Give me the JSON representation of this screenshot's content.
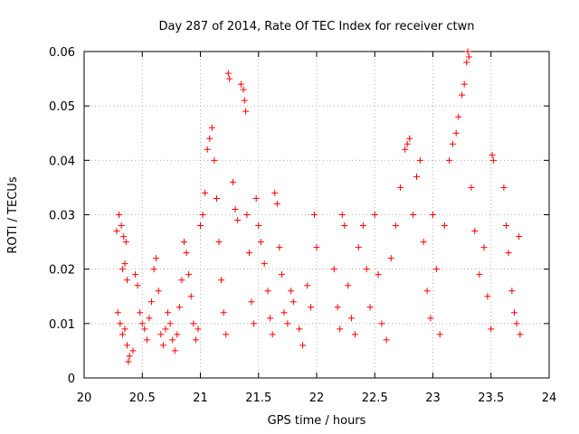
{
  "chart_data": {
    "type": "scatter",
    "title": "Day 287 of 2014, Rate Of TEC Index for receiver ctwn",
    "xlabel": "GPS time / hours",
    "ylabel": "ROTI / TECUs",
    "xlim": [
      20,
      24
    ],
    "ylim": [
      0,
      0.06
    ],
    "x_ticks": [
      "20",
      "20.5",
      "21",
      "21.5",
      "22",
      "22.5",
      "23",
      "23.5",
      "24"
    ],
    "y_ticks": [
      "0",
      "0.01",
      "0.02",
      "0.03",
      "0.04",
      "0.05",
      "0.06"
    ],
    "grid": true,
    "marker": "+",
    "marker_color": "#ff0000",
    "series": [
      {
        "name": "ROTI",
        "points": [
          [
            20.28,
            0.027
          ],
          [
            20.3,
            0.03
          ],
          [
            20.32,
            0.028
          ],
          [
            20.34,
            0.026
          ],
          [
            20.36,
            0.025
          ],
          [
            20.33,
            0.02
          ],
          [
            20.35,
            0.021
          ],
          [
            20.37,
            0.018
          ],
          [
            20.29,
            0.012
          ],
          [
            20.31,
            0.01
          ],
          [
            20.33,
            0.008
          ],
          [
            20.35,
            0.009
          ],
          [
            20.37,
            0.006
          ],
          [
            20.39,
            0.004
          ],
          [
            20.38,
            0.003
          ],
          [
            20.42,
            0.005
          ],
          [
            20.44,
            0.019
          ],
          [
            20.46,
            0.017
          ],
          [
            20.48,
            0.012
          ],
          [
            20.5,
            0.01
          ],
          [
            20.52,
            0.009
          ],
          [
            20.54,
            0.007
          ],
          [
            20.56,
            0.011
          ],
          [
            20.58,
            0.014
          ],
          [
            20.6,
            0.02
          ],
          [
            20.62,
            0.022
          ],
          [
            20.64,
            0.016
          ],
          [
            20.66,
            0.008
          ],
          [
            20.68,
            0.006
          ],
          [
            20.7,
            0.009
          ],
          [
            20.72,
            0.012
          ],
          [
            20.74,
            0.01
          ],
          [
            20.76,
            0.007
          ],
          [
            20.78,
            0.005
          ],
          [
            20.8,
            0.008
          ],
          [
            20.82,
            0.013
          ],
          [
            20.84,
            0.018
          ],
          [
            20.86,
            0.025
          ],
          [
            20.88,
            0.023
          ],
          [
            20.9,
            0.019
          ],
          [
            20.92,
            0.015
          ],
          [
            20.94,
            0.01
          ],
          [
            20.96,
            0.007
          ],
          [
            20.98,
            0.009
          ],
          [
            21.0,
            0.028
          ],
          [
            21.02,
            0.03
          ],
          [
            21.04,
            0.034
          ],
          [
            21.06,
            0.042
          ],
          [
            21.08,
            0.044
          ],
          [
            21.1,
            0.046
          ],
          [
            21.12,
            0.04
          ],
          [
            21.14,
            0.033
          ],
          [
            21.16,
            0.025
          ],
          [
            21.18,
            0.018
          ],
          [
            21.2,
            0.012
          ],
          [
            21.22,
            0.008
          ],
          [
            21.24,
            0.056
          ],
          [
            21.25,
            0.055
          ],
          [
            21.28,
            0.036
          ],
          [
            21.3,
            0.031
          ],
          [
            21.32,
            0.029
          ],
          [
            21.35,
            0.054
          ],
          [
            21.37,
            0.053
          ],
          [
            21.38,
            0.051
          ],
          [
            21.39,
            0.049
          ],
          [
            21.4,
            0.03
          ],
          [
            21.42,
            0.023
          ],
          [
            21.44,
            0.014
          ],
          [
            21.46,
            0.01
          ],
          [
            21.48,
            0.033
          ],
          [
            21.5,
            0.028
          ],
          [
            21.52,
            0.025
          ],
          [
            21.55,
            0.021
          ],
          [
            21.58,
            0.016
          ],
          [
            21.6,
            0.011
          ],
          [
            21.62,
            0.008
          ],
          [
            21.64,
            0.034
          ],
          [
            21.66,
            0.032
          ],
          [
            21.68,
            0.024
          ],
          [
            21.7,
            0.019
          ],
          [
            21.72,
            0.012
          ],
          [
            21.75,
            0.01
          ],
          [
            21.78,
            0.016
          ],
          [
            21.8,
            0.014
          ],
          [
            21.85,
            0.009
          ],
          [
            21.88,
            0.006
          ],
          [
            21.92,
            0.017
          ],
          [
            21.95,
            0.013
          ],
          [
            21.98,
            0.03
          ],
          [
            22.0,
            0.024
          ],
          [
            22.15,
            0.02
          ],
          [
            22.18,
            0.013
          ],
          [
            22.2,
            0.009
          ],
          [
            22.22,
            0.03
          ],
          [
            22.24,
            0.028
          ],
          [
            22.27,
            0.017
          ],
          [
            22.3,
            0.011
          ],
          [
            22.33,
            0.008
          ],
          [
            22.36,
            0.024
          ],
          [
            22.4,
            0.028
          ],
          [
            22.43,
            0.02
          ],
          [
            22.46,
            0.013
          ],
          [
            22.5,
            0.03
          ],
          [
            22.53,
            0.019
          ],
          [
            22.56,
            0.01
          ],
          [
            22.6,
            0.007
          ],
          [
            22.64,
            0.022
          ],
          [
            22.68,
            0.028
          ],
          [
            22.72,
            0.035
          ],
          [
            22.76,
            0.042
          ],
          [
            22.78,
            0.043
          ],
          [
            22.8,
            0.044
          ],
          [
            22.83,
            0.03
          ],
          [
            22.86,
            0.037
          ],
          [
            22.89,
            0.04
          ],
          [
            22.92,
            0.025
          ],
          [
            22.95,
            0.016
          ],
          [
            22.98,
            0.011
          ],
          [
            23.0,
            0.03
          ],
          [
            23.03,
            0.02
          ],
          [
            23.06,
            0.008
          ],
          [
            23.1,
            0.028
          ],
          [
            23.14,
            0.04
          ],
          [
            23.17,
            0.043
          ],
          [
            23.2,
            0.045
          ],
          [
            23.22,
            0.048
          ],
          [
            23.25,
            0.052
          ],
          [
            23.27,
            0.054
          ],
          [
            23.29,
            0.058
          ],
          [
            23.3,
            0.06
          ],
          [
            23.31,
            0.059
          ],
          [
            23.33,
            0.035
          ],
          [
            23.36,
            0.027
          ],
          [
            23.4,
            0.019
          ],
          [
            23.44,
            0.024
          ],
          [
            23.47,
            0.015
          ],
          [
            23.5,
            0.009
          ],
          [
            23.51,
            0.041
          ],
          [
            23.52,
            0.04
          ],
          [
            23.61,
            0.035
          ],
          [
            23.63,
            0.028
          ],
          [
            23.65,
            0.023
          ],
          [
            23.68,
            0.016
          ],
          [
            23.7,
            0.012
          ],
          [
            23.72,
            0.01
          ],
          [
            23.74,
            0.026
          ],
          [
            23.75,
            0.008
          ]
        ]
      }
    ]
  }
}
